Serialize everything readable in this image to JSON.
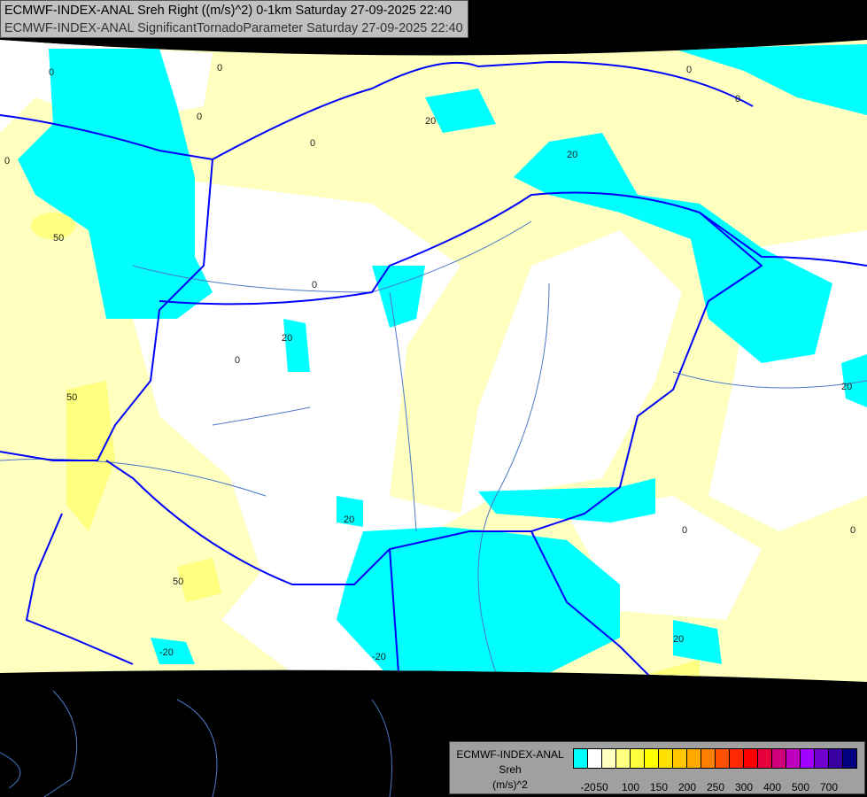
{
  "title": {
    "line1": "ECMWF-INDEX-ANAL Sreh Right ((m/s)^2) 0-1km Saturday 27-09-2025 22:40",
    "line2": "ECMWF-INDEX-ANAL SignificantTornadoParameter Saturday 27-09-2025 22:40"
  },
  "legend": {
    "model": "ECMWF-INDEX-ANAL",
    "variable": "Sreh",
    "unit": "(m/s)^2",
    "colors": [
      "#00ffff",
      "#ffffff",
      "#ffffc0",
      "#ffff80",
      "#ffff40",
      "#ffff00",
      "#ffe000",
      "#ffc800",
      "#ffa800",
      "#ff8000",
      "#ff5000",
      "#ff2800",
      "#ff0000",
      "#e8003c",
      "#d0007c",
      "#c000c0",
      "#a000ff",
      "#7000d0",
      "#3800a0",
      "#000080"
    ],
    "ticks": [
      "-20",
      "50",
      "100",
      "150",
      "200",
      "250",
      "300",
      "400",
      "500",
      "700"
    ]
  },
  "map": {
    "colors": {
      "low": "#00ffff",
      "neutral": "#ffffff",
      "light": "#ffffc0",
      "moderate": "#ffff80",
      "strong": "#ffff40",
      "border": "#0000ff",
      "river": "#4a78c8",
      "outside": "#000000"
    },
    "contour_labels": [
      "-20",
      "0",
      "20",
      "50"
    ]
  }
}
